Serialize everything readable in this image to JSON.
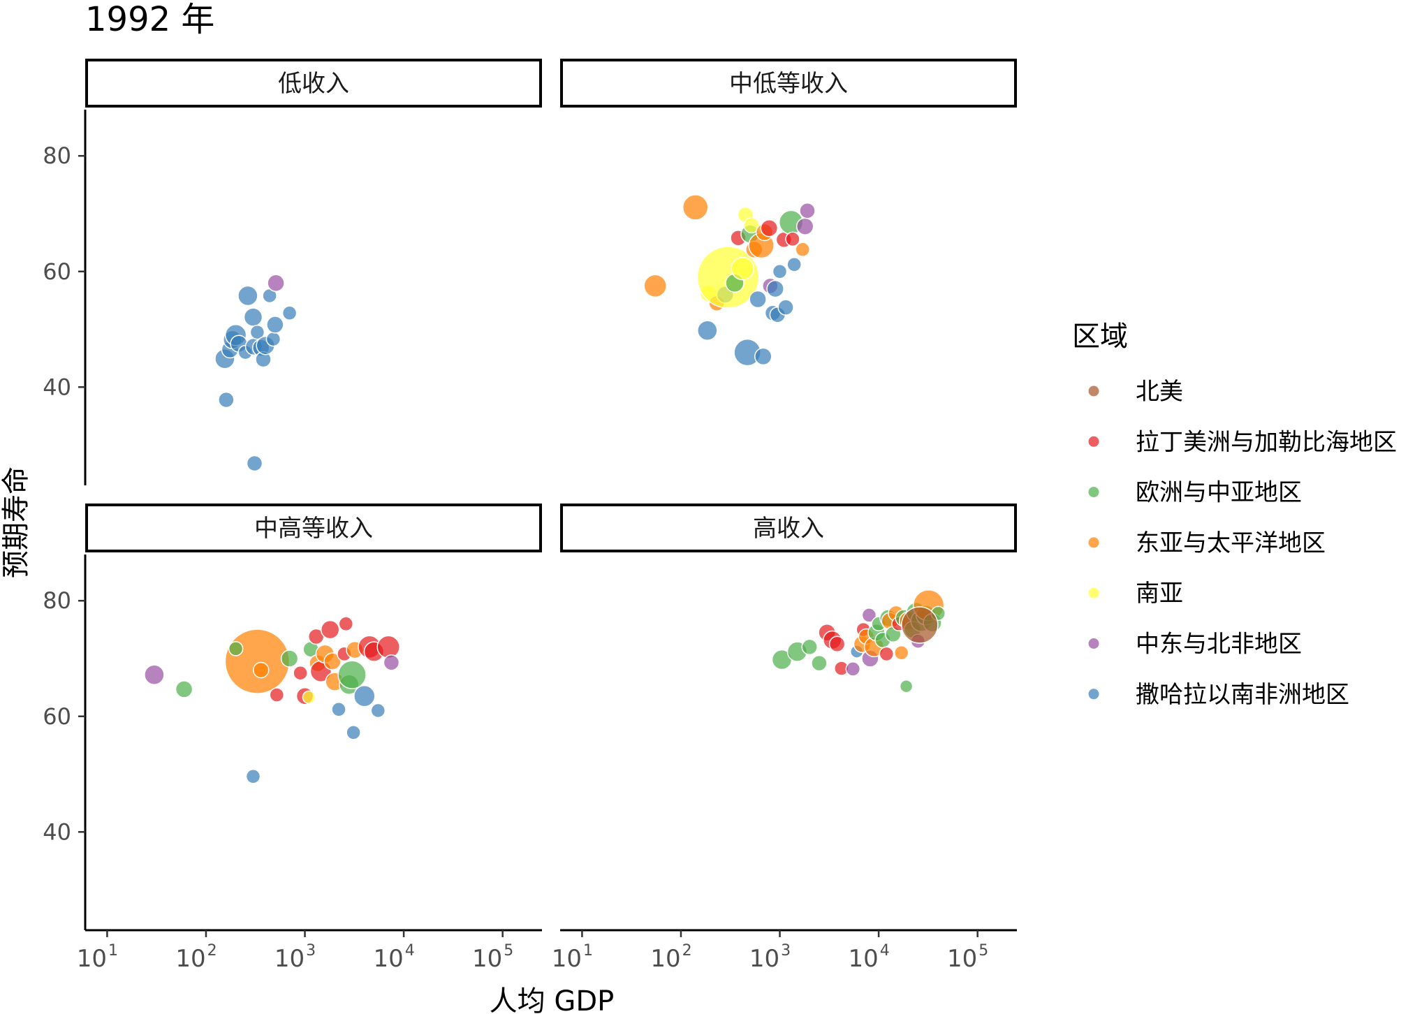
{
  "chart_data": {
    "type": "scatter",
    "title": "1992 年",
    "xlabel": "人均 GDP",
    "ylabel": "预期寿命",
    "x_scale": "log10",
    "xlim": [
      6,
      250000
    ],
    "ylim": [
      23,
      88
    ],
    "x_ticks": [
      10,
      100,
      1000,
      10000,
      100000
    ],
    "x_tick_labels": [
      {
        "base": "10",
        "exp": "1"
      },
      {
        "base": "10",
        "exp": "2"
      },
      {
        "base": "10",
        "exp": "3"
      },
      {
        "base": "10",
        "exp": "4"
      },
      {
        "base": "10",
        "exp": "5"
      }
    ],
    "y_ticks": [
      40,
      60,
      80
    ],
    "y_tick_labels": [
      "40",
      "60",
      "80"
    ],
    "legend": {
      "title": "区域",
      "position": "right",
      "entries": [
        {
          "name": "北美",
          "color": "#a65628"
        },
        {
          "name": "拉丁美洲与加勒比海地区",
          "color": "#e41a1c"
        },
        {
          "name": "欧洲与中亚地区",
          "color": "#4daf4a"
        },
        {
          "name": "东亚与太平洋地区",
          "color": "#ff7f00"
        },
        {
          "name": "南亚",
          "color": "#ffff33"
        },
        {
          "name": "中东与北非地区",
          "color": "#984ea3"
        },
        {
          "name": "撒哈拉以南非洲地区",
          "color": "#377eb8"
        }
      ]
    },
    "facets": [
      {
        "title": "低收入",
        "points": [
          {
            "gdp": 155,
            "life": 44.9,
            "region": 6,
            "size": 14
          },
          {
            "gdp": 160,
            "life": 37.8,
            "region": 6,
            "size": 11
          },
          {
            "gdp": 175,
            "life": 46.5,
            "region": 6,
            "size": 12
          },
          {
            "gdp": 185,
            "life": 48.2,
            "region": 6,
            "size": 13
          },
          {
            "gdp": 200,
            "life": 49.0,
            "region": 6,
            "size": 15
          },
          {
            "gdp": 215,
            "life": 47.5,
            "region": 6,
            "size": 12
          },
          {
            "gdp": 250,
            "life": 46.0,
            "region": 6,
            "size": 10
          },
          {
            "gdp": 265,
            "life": 55.8,
            "region": 6,
            "size": 14
          },
          {
            "gdp": 300,
            "life": 52.1,
            "region": 6,
            "size": 13
          },
          {
            "gdp": 305,
            "life": 47.0,
            "region": 6,
            "size": 12
          },
          {
            "gdp": 310,
            "life": 26.8,
            "region": 6,
            "size": 11
          },
          {
            "gdp": 330,
            "life": 49.5,
            "region": 6,
            "size": 10
          },
          {
            "gdp": 360,
            "life": 46.8,
            "region": 6,
            "size": 12
          },
          {
            "gdp": 380,
            "life": 44.8,
            "region": 6,
            "size": 11
          },
          {
            "gdp": 400,
            "life": 47.2,
            "region": 6,
            "size": 13
          },
          {
            "gdp": 440,
            "life": 55.8,
            "region": 6,
            "size": 10
          },
          {
            "gdp": 480,
            "life": 48.3,
            "region": 6,
            "size": 10
          },
          {
            "gdp": 500,
            "life": 50.8,
            "region": 6,
            "size": 12
          },
          {
            "gdp": 510,
            "life": 58.0,
            "region": 5,
            "size": 12
          },
          {
            "gdp": 700,
            "life": 52.8,
            "region": 6,
            "size": 10
          }
        ]
      },
      {
        "title": "中低等收入",
        "points": [
          {
            "gdp": 55,
            "life": 57.5,
            "region": 3,
            "size": 16
          },
          {
            "gdp": 140,
            "life": 71.1,
            "region": 3,
            "size": 18
          },
          {
            "gdp": 185,
            "life": 49.8,
            "region": 6,
            "size": 14
          },
          {
            "gdp": 190,
            "life": 56.2,
            "region": 4,
            "size": 12
          },
          {
            "gdp": 230,
            "life": 54.5,
            "region": 3,
            "size": 11
          },
          {
            "gdp": 280,
            "life": 56.0,
            "region": 6,
            "size": 12
          },
          {
            "gdp": 300,
            "life": 59.0,
            "region": 4,
            "size": 44
          },
          {
            "gdp": 350,
            "life": 58.0,
            "region": 2,
            "size": 13
          },
          {
            "gdp": 380,
            "life": 65.8,
            "region": 1,
            "size": 11
          },
          {
            "gdp": 420,
            "life": 60.5,
            "region": 4,
            "size": 16
          },
          {
            "gdp": 450,
            "life": 69.8,
            "region": 4,
            "size": 11
          },
          {
            "gdp": 470,
            "life": 46.0,
            "region": 6,
            "size": 19
          },
          {
            "gdp": 500,
            "life": 66.5,
            "region": 2,
            "size": 13
          },
          {
            "gdp": 520,
            "life": 68.0,
            "region": 4,
            "size": 11
          },
          {
            "gdp": 550,
            "life": 63.8,
            "region": 3,
            "size": 12
          },
          {
            "gdp": 600,
            "life": 55.2,
            "region": 6,
            "size": 12
          },
          {
            "gdp": 650,
            "life": 64.5,
            "region": 3,
            "size": 18
          },
          {
            "gdp": 680,
            "life": 45.3,
            "region": 6,
            "size": 12
          },
          {
            "gdp": 700,
            "life": 66.8,
            "region": 3,
            "size": 12
          },
          {
            "gdp": 780,
            "life": 67.5,
            "region": 1,
            "size": 12
          },
          {
            "gdp": 800,
            "life": 57.5,
            "region": 5,
            "size": 11
          },
          {
            "gdp": 850,
            "life": 52.8,
            "region": 6,
            "size": 11
          },
          {
            "gdp": 900,
            "life": 57.0,
            "region": 6,
            "size": 12
          },
          {
            "gdp": 950,
            "life": 52.5,
            "region": 6,
            "size": 11
          },
          {
            "gdp": 1000,
            "life": 60.0,
            "region": 6,
            "size": 10
          },
          {
            "gdp": 1100,
            "life": 65.5,
            "region": 1,
            "size": 11
          },
          {
            "gdp": 1150,
            "life": 53.8,
            "region": 6,
            "size": 11
          },
          {
            "gdp": 1300,
            "life": 68.5,
            "region": 2,
            "size": 17
          },
          {
            "gdp": 1350,
            "life": 65.6,
            "region": 1,
            "size": 10
          },
          {
            "gdp": 1400,
            "life": 61.2,
            "region": 6,
            "size": 10
          },
          {
            "gdp": 1700,
            "life": 63.8,
            "region": 3,
            "size": 10
          },
          {
            "gdp": 1800,
            "life": 67.8,
            "region": 5,
            "size": 12
          },
          {
            "gdp": 1900,
            "life": 70.5,
            "region": 5,
            "size": 11
          }
        ]
      },
      {
        "title": "中高等收入",
        "points": [
          {
            "gdp": 30,
            "life": 67.2,
            "region": 5,
            "size": 14
          },
          {
            "gdp": 60,
            "life": 64.7,
            "region": 2,
            "size": 12
          },
          {
            "gdp": 330,
            "life": 69.5,
            "region": 3,
            "size": 46
          },
          {
            "gdp": 300,
            "life": 49.6,
            "region": 6,
            "size": 10
          },
          {
            "gdp": 360,
            "life": 68.0,
            "region": 3,
            "size": 11
          },
          {
            "gdp": 200,
            "life": 71.7,
            "region": 2,
            "size": 10
          },
          {
            "gdp": 520,
            "life": 63.7,
            "region": 1,
            "size": 10
          },
          {
            "gdp": 700,
            "life": 70.0,
            "region": 2,
            "size": 12
          },
          {
            "gdp": 900,
            "life": 67.5,
            "region": 1,
            "size": 10
          },
          {
            "gdp": 1000,
            "life": 63.5,
            "region": 1,
            "size": 12
          },
          {
            "gdp": 1100,
            "life": 63.3,
            "region": 4,
            "size": 9
          },
          {
            "gdp": 1150,
            "life": 71.6,
            "region": 2,
            "size": 11
          },
          {
            "gdp": 1300,
            "life": 73.8,
            "region": 1,
            "size": 11
          },
          {
            "gdp": 1350,
            "life": 69.2,
            "region": 3,
            "size": 12
          },
          {
            "gdp": 1450,
            "life": 67.8,
            "region": 1,
            "size": 15
          },
          {
            "gdp": 1600,
            "life": 70.8,
            "region": 3,
            "size": 13
          },
          {
            "gdp": 1800,
            "life": 75.0,
            "region": 1,
            "size": 13
          },
          {
            "gdp": 1900,
            "life": 69.5,
            "region": 3,
            "size": 12
          },
          {
            "gdp": 2000,
            "life": 66.0,
            "region": 3,
            "size": 13
          },
          {
            "gdp": 2200,
            "life": 61.2,
            "region": 6,
            "size": 10
          },
          {
            "gdp": 2500,
            "life": 70.8,
            "region": 1,
            "size": 10
          },
          {
            "gdp": 2600,
            "life": 76.0,
            "region": 1,
            "size": 10
          },
          {
            "gdp": 2800,
            "life": 65.5,
            "region": 2,
            "size": 14
          },
          {
            "gdp": 3000,
            "life": 67.2,
            "region": 2,
            "size": 20
          },
          {
            "gdp": 3100,
            "life": 57.2,
            "region": 6,
            "size": 10
          },
          {
            "gdp": 3200,
            "life": 71.5,
            "region": 3,
            "size": 12
          },
          {
            "gdp": 4000,
            "life": 63.5,
            "region": 6,
            "size": 15
          },
          {
            "gdp": 4500,
            "life": 72.0,
            "region": 1,
            "size": 16
          },
          {
            "gdp": 5000,
            "life": 71.2,
            "region": 1,
            "size": 14
          },
          {
            "gdp": 5500,
            "life": 61.0,
            "region": 6,
            "size": 10
          },
          {
            "gdp": 7000,
            "life": 72.0,
            "region": 1,
            "size": 16
          },
          {
            "gdp": 7500,
            "life": 69.3,
            "region": 5,
            "size": 11
          }
        ]
      },
      {
        "title": "高收入",
        "points": [
          {
            "gdp": 1050,
            "life": 69.8,
            "region": 2,
            "size": 14
          },
          {
            "gdp": 1500,
            "life": 71.2,
            "region": 2,
            "size": 14
          },
          {
            "gdp": 2000,
            "life": 72.0,
            "region": 2,
            "size": 11
          },
          {
            "gdp": 2500,
            "life": 69.2,
            "region": 2,
            "size": 11
          },
          {
            "gdp": 3000,
            "life": 74.5,
            "region": 1,
            "size": 12
          },
          {
            "gdp": 3400,
            "life": 73.2,
            "region": 1,
            "size": 13
          },
          {
            "gdp": 3800,
            "life": 72.5,
            "region": 1,
            "size": 11
          },
          {
            "gdp": 4200,
            "life": 68.3,
            "region": 1,
            "size": 10
          },
          {
            "gdp": 5500,
            "life": 68.2,
            "region": 5,
            "size": 10
          },
          {
            "gdp": 6000,
            "life": 71.2,
            "region": 6,
            "size": 9
          },
          {
            "gdp": 6800,
            "life": 72.5,
            "region": 3,
            "size": 12
          },
          {
            "gdp": 7000,
            "life": 75.0,
            "region": 1,
            "size": 10
          },
          {
            "gdp": 7500,
            "life": 73.8,
            "region": 3,
            "size": 11
          },
          {
            "gdp": 8000,
            "life": 77.5,
            "region": 5,
            "size": 10
          },
          {
            "gdp": 8200,
            "life": 70.0,
            "region": 5,
            "size": 12
          },
          {
            "gdp": 9000,
            "life": 72.0,
            "region": 3,
            "size": 14
          },
          {
            "gdp": 9500,
            "life": 74.5,
            "region": 2,
            "size": 12
          },
          {
            "gdp": 10000,
            "life": 76.0,
            "region": 2,
            "size": 10
          },
          {
            "gdp": 11000,
            "life": 73.2,
            "region": 2,
            "size": 11
          },
          {
            "gdp": 12000,
            "life": 70.8,
            "region": 1,
            "size": 10
          },
          {
            "gdp": 12500,
            "life": 77.0,
            "region": 2,
            "size": 12
          },
          {
            "gdp": 13000,
            "life": 76.5,
            "region": 3,
            "size": 12
          },
          {
            "gdp": 14000,
            "life": 74.2,
            "region": 2,
            "size": 11
          },
          {
            "gdp": 15000,
            "life": 77.8,
            "region": 3,
            "size": 11
          },
          {
            "gdp": 16000,
            "life": 76.0,
            "region": 1,
            "size": 10
          },
          {
            "gdp": 17000,
            "life": 71.0,
            "region": 3,
            "size": 10
          },
          {
            "gdp": 18000,
            "life": 77.0,
            "region": 2,
            "size": 12
          },
          {
            "gdp": 19000,
            "life": 65.2,
            "region": 2,
            "size": 9
          },
          {
            "gdp": 20000,
            "life": 76.5,
            "region": 3,
            "size": 13
          },
          {
            "gdp": 22000,
            "life": 75.0,
            "region": 2,
            "size": 12
          },
          {
            "gdp": 24000,
            "life": 78.0,
            "region": 2,
            "size": 14
          },
          {
            "gdp": 25000,
            "life": 73.0,
            "region": 5,
            "size": 10
          },
          {
            "gdp": 27000,
            "life": 76.5,
            "region": 2,
            "size": 15
          },
          {
            "gdp": 30000,
            "life": 77.5,
            "region": 2,
            "size": 14
          },
          {
            "gdp": 32000,
            "life": 79.2,
            "region": 3,
            "size": 22
          },
          {
            "gdp": 35000,
            "life": 76.2,
            "region": 2,
            "size": 13
          },
          {
            "gdp": 40000,
            "life": 77.8,
            "region": 2,
            "size": 10
          },
          {
            "gdp": 26000,
            "life": 75.8,
            "region": 0,
            "size": 26
          }
        ]
      }
    ]
  }
}
